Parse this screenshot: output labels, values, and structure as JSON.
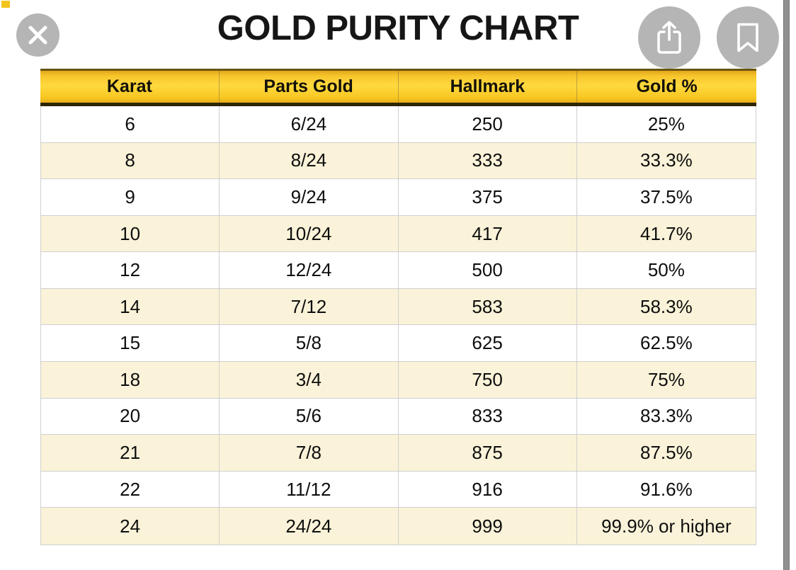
{
  "chart_data": {
    "type": "table",
    "title": "GOLD PURITY CHART",
    "columns": [
      "Karat",
      "Parts Gold",
      "Hallmark",
      "Gold %"
    ],
    "rows": [
      [
        "6",
        "6/24",
        "250",
        "25%"
      ],
      [
        "8",
        "8/24",
        "333",
        "33.3%"
      ],
      [
        "9",
        "9/24",
        "375",
        "37.5%"
      ],
      [
        "10",
        "10/24",
        "417",
        "41.7%"
      ],
      [
        "12",
        "12/24",
        "500",
        "50%"
      ],
      [
        "14",
        "7/12",
        "583",
        "58.3%"
      ],
      [
        "15",
        "5/8",
        "625",
        "62.5%"
      ],
      [
        "18",
        "3/4",
        "750",
        "75%"
      ],
      [
        "20",
        "5/6",
        "833",
        "83.3%"
      ],
      [
        "21",
        "7/8",
        "875",
        "87.5%"
      ],
      [
        "22",
        "11/12",
        "916",
        "91.6%"
      ],
      [
        "24",
        "24/24",
        "999",
        "99.9% or higher"
      ]
    ],
    "layout": {
      "header_background": "gold gradient",
      "row_striping": [
        "white",
        "cream"
      ],
      "columns_equal_width": true,
      "grid": true
    }
  },
  "viewer": {
    "icons": [
      "close-icon",
      "share-icon",
      "bookmark-icon"
    ],
    "scrollbar": "full-height right scrollbar"
  },
  "colors": {
    "header_gold_mid": "#ffd93f",
    "header_gold_edge": "#e2a71c",
    "header_border_dark": "#2f2505",
    "header_top_line": "#6b5410",
    "row_alt_cream": "#faf3d9",
    "border_gray": "#cfcfcf",
    "button_gray": "#b5b5b5",
    "scrollbar_gray": "#909090",
    "text_black": "#111111"
  }
}
